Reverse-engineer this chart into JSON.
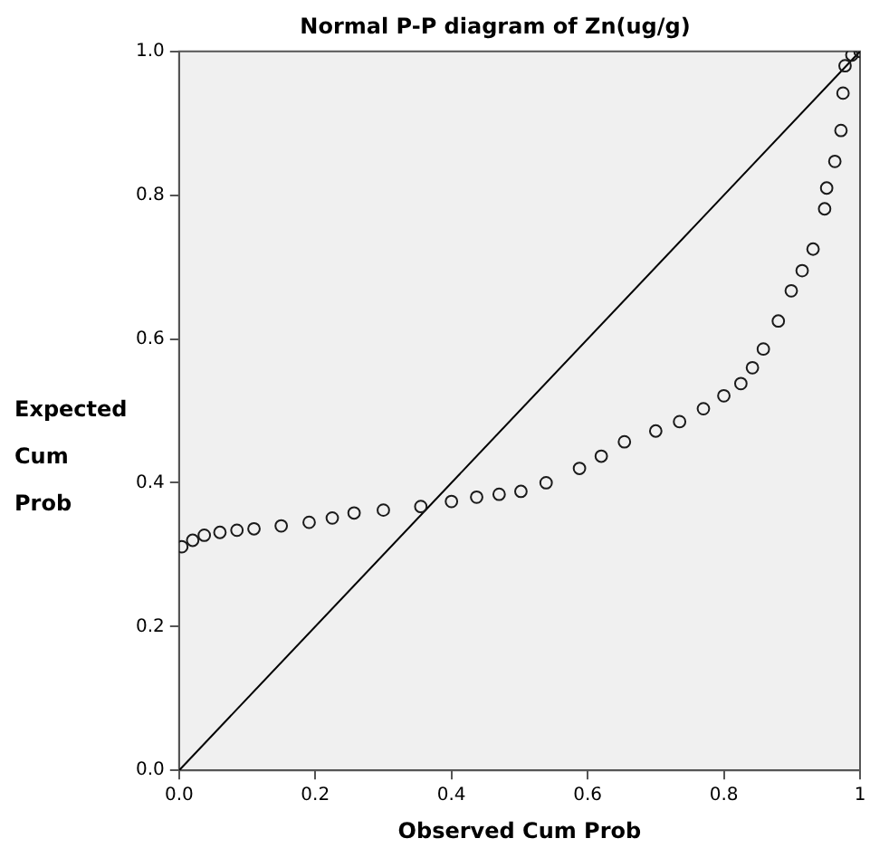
{
  "chart_data": {
    "type": "scatter",
    "title": "Normal P-P diagram of Zn(ug/g)",
    "xlabel": "Observed Cum Prob",
    "ylabel": "Expected Cum Prob",
    "xlim": [
      0,
      1
    ],
    "ylim": [
      0,
      1
    ],
    "xticks": [
      {
        "value": 0,
        "label": "0.0"
      },
      {
        "value": 0.2,
        "label": "0.2"
      },
      {
        "value": 0.4,
        "label": "0.4"
      },
      {
        "value": 0.6,
        "label": "0.6"
      },
      {
        "value": 0.8,
        "label": "0.8"
      },
      {
        "value": 1,
        "label": "1"
      }
    ],
    "yticks": [
      {
        "value": 0,
        "label": "0.0"
      },
      {
        "value": 0.2,
        "label": "0.2"
      },
      {
        "value": 0.4,
        "label": "0.4"
      },
      {
        "value": 0.6,
        "label": "0.6"
      },
      {
        "value": 0.8,
        "label": "0.8"
      },
      {
        "value": 1,
        "label": "1.0"
      }
    ],
    "grid": false,
    "legend": false,
    "series": [
      {
        "marker": "circle",
        "color": "#1a1a1a",
        "x": [
          0.004,
          0.02,
          0.037,
          0.06,
          0.085,
          0.11,
          0.15,
          0.191,
          0.225,
          0.257,
          0.3,
          0.355,
          0.4,
          0.437,
          0.47,
          0.502,
          0.539,
          0.588,
          0.62,
          0.654,
          0.7,
          0.735,
          0.77,
          0.8,
          0.825,
          0.842,
          0.858,
          0.88,
          0.899,
          0.915,
          0.931,
          0.948,
          0.951,
          0.963,
          0.972,
          0.975,
          0.978,
          0.988,
          1.0
        ],
        "values": [
          0.311,
          0.32,
          0.327,
          0.331,
          0.334,
          0.336,
          0.34,
          0.345,
          0.351,
          0.358,
          0.362,
          0.367,
          0.374,
          0.38,
          0.384,
          0.388,
          0.4,
          0.42,
          0.437,
          0.457,
          0.472,
          0.485,
          0.503,
          0.521,
          0.538,
          0.56,
          0.586,
          0.625,
          0.667,
          0.695,
          0.725,
          0.781,
          0.81,
          0.847,
          0.89,
          0.942,
          0.98,
          0.995,
          1.0
        ]
      },
      {
        "type": "line",
        "marker": "none",
        "color": "#000000",
        "line_style": "solid",
        "x": [
          0,
          1
        ],
        "values": [
          0,
          1
        ]
      }
    ]
  }
}
